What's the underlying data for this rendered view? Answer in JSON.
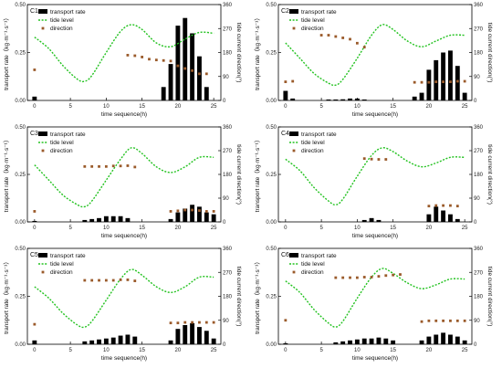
{
  "legend": {
    "transport": "transport rate",
    "tide": "tide level",
    "direction": "direction"
  },
  "axes": {
    "xlabel": "time sequence(h)",
    "ylabel_left": "transport rate（kg·m⁻¹·s⁻¹）",
    "ylabel_right": "tide current direction(°)",
    "x_ticks": [
      0,
      5,
      10,
      15,
      20,
      25
    ],
    "y_ticks_left": [
      "0.00",
      "0.25",
      "0.50"
    ],
    "y_ticks_right": [
      0,
      90,
      180,
      270,
      360
    ]
  },
  "colors": {
    "bar": "#000000",
    "tide": "#22c21f",
    "direction": "#9a5a2a",
    "frame": "#000000"
  },
  "chart_data": [
    {
      "type": "bar",
      "label": "C1",
      "xlim": [
        -1,
        26
      ],
      "ylim": [
        0,
        0.5
      ],
      "y2lim": [
        0,
        360
      ],
      "transport_rate": [
        [
          0,
          0.02
        ],
        [
          18,
          0.07
        ],
        [
          19,
          0.19
        ],
        [
          20,
          0.39
        ],
        [
          21,
          0.43
        ],
        [
          22,
          0.35
        ],
        [
          23,
          0.23
        ],
        [
          24,
          0.07
        ]
      ],
      "tide_level": [
        [
          0,
          0.33
        ],
        [
          2,
          0.27
        ],
        [
          4,
          0.18
        ],
        [
          6,
          0.11
        ],
        [
          7,
          0.1
        ],
        [
          8,
          0.13
        ],
        [
          10,
          0.25
        ],
        [
          12,
          0.36
        ],
        [
          13.5,
          0.395
        ],
        [
          15,
          0.37
        ],
        [
          17,
          0.3
        ],
        [
          19,
          0.28
        ],
        [
          21,
          0.32
        ],
        [
          23,
          0.355
        ],
        [
          25,
          0.35
        ]
      ],
      "direction": [
        [
          0,
          115
        ],
        [
          13,
          170
        ],
        [
          14,
          168
        ],
        [
          15,
          163
        ],
        [
          16,
          155
        ],
        [
          17,
          152
        ],
        [
          18,
          150
        ],
        [
          19,
          148
        ],
        [
          20,
          130
        ],
        [
          21,
          120
        ],
        [
          22,
          112
        ],
        [
          23,
          100
        ],
        [
          24,
          100
        ]
      ]
    },
    {
      "type": "bar",
      "label": "C2",
      "xlim": [
        -1,
        26
      ],
      "ylim": [
        0,
        0.5
      ],
      "y2lim": [
        0,
        360
      ],
      "transport_rate": [
        [
          0,
          0.05
        ],
        [
          1,
          0.01
        ],
        [
          6,
          0.005
        ],
        [
          7,
          0.005
        ],
        [
          8,
          0.006
        ],
        [
          9,
          0.01
        ],
        [
          10,
          0.01
        ],
        [
          11,
          0.005
        ],
        [
          18,
          0.02
        ],
        [
          19,
          0.04
        ],
        [
          20,
          0.16
        ],
        [
          21,
          0.21
        ],
        [
          22,
          0.25
        ],
        [
          23,
          0.26
        ],
        [
          24,
          0.18
        ],
        [
          25,
          0.04
        ]
      ],
      "tide_level": [
        [
          0,
          0.3
        ],
        [
          2,
          0.22
        ],
        [
          4,
          0.14
        ],
        [
          6,
          0.09
        ],
        [
          7,
          0.08
        ],
        [
          8,
          0.11
        ],
        [
          10,
          0.22
        ],
        [
          12,
          0.34
        ],
        [
          13.5,
          0.395
        ],
        [
          15,
          0.37
        ],
        [
          17,
          0.31
        ],
        [
          19,
          0.28
        ],
        [
          21,
          0.31
        ],
        [
          23,
          0.34
        ],
        [
          25,
          0.34
        ]
      ],
      "direction": [
        [
          0,
          70
        ],
        [
          1,
          72
        ],
        [
          5,
          245
        ],
        [
          6,
          245
        ],
        [
          7,
          240
        ],
        [
          8,
          235
        ],
        [
          9,
          230
        ],
        [
          10,
          215
        ],
        [
          11,
          200
        ],
        [
          18,
          68
        ],
        [
          19,
          68
        ],
        [
          20,
          68
        ],
        [
          21,
          70
        ],
        [
          22,
          70
        ],
        [
          23,
          70
        ],
        [
          24,
          72
        ],
        [
          25,
          72
        ]
      ]
    },
    {
      "type": "bar",
      "label": "C3",
      "xlim": [
        -1,
        26
      ],
      "ylim": [
        0,
        0.5
      ],
      "y2lim": [
        0,
        360
      ],
      "transport_rate": [
        [
          0,
          0.005
        ],
        [
          7,
          0.01
        ],
        [
          8,
          0.015
        ],
        [
          9,
          0.02
        ],
        [
          10,
          0.03
        ],
        [
          11,
          0.03
        ],
        [
          12,
          0.03
        ],
        [
          13,
          0.02
        ],
        [
          19,
          0.015
        ],
        [
          20,
          0.05
        ],
        [
          21,
          0.07
        ],
        [
          22,
          0.09
        ],
        [
          23,
          0.08
        ],
        [
          24,
          0.05
        ],
        [
          25,
          0.04
        ]
      ],
      "tide_level": [
        [
          0,
          0.3
        ],
        [
          2,
          0.22
        ],
        [
          4,
          0.14
        ],
        [
          6,
          0.09
        ],
        [
          7,
          0.08
        ],
        [
          8,
          0.11
        ],
        [
          10,
          0.22
        ],
        [
          12,
          0.33
        ],
        [
          13.5,
          0.39
        ],
        [
          15,
          0.36
        ],
        [
          17,
          0.29
        ],
        [
          19,
          0.26
        ],
        [
          21,
          0.29
        ],
        [
          23,
          0.34
        ],
        [
          25,
          0.34
        ]
      ],
      "direction": [
        [
          0,
          40
        ],
        [
          7,
          210
        ],
        [
          8,
          210
        ],
        [
          9,
          210
        ],
        [
          10,
          210
        ],
        [
          11,
          212
        ],
        [
          12,
          212
        ],
        [
          13,
          213
        ],
        [
          14,
          208
        ],
        [
          19,
          40
        ],
        [
          20,
          42
        ],
        [
          21,
          45
        ],
        [
          22,
          45
        ],
        [
          23,
          43
        ],
        [
          24,
          40
        ],
        [
          25,
          40
        ]
      ]
    },
    {
      "type": "bar",
      "label": "C4",
      "xlim": [
        -1,
        26
      ],
      "ylim": [
        0,
        0.5
      ],
      "y2lim": [
        0,
        360
      ],
      "transport_rate": [
        [
          11,
          0.01
        ],
        [
          12,
          0.02
        ],
        [
          13,
          0.01
        ],
        [
          20,
          0.04
        ],
        [
          21,
          0.08
        ],
        [
          22,
          0.06
        ],
        [
          23,
          0.04
        ],
        [
          24,
          0.015
        ]
      ],
      "tide_level": [
        [
          0,
          0.33
        ],
        [
          2,
          0.27
        ],
        [
          4,
          0.18
        ],
        [
          6,
          0.11
        ],
        [
          7,
          0.09
        ],
        [
          8,
          0.12
        ],
        [
          10,
          0.24
        ],
        [
          12,
          0.35
        ],
        [
          13.5,
          0.39
        ],
        [
          15,
          0.37
        ],
        [
          17,
          0.32
        ],
        [
          19,
          0.29
        ],
        [
          21,
          0.31
        ],
        [
          23,
          0.34
        ],
        [
          25,
          0.34
        ]
      ],
      "direction": [
        [
          11,
          240
        ],
        [
          12,
          238
        ],
        [
          13,
          237
        ],
        [
          14,
          237
        ],
        [
          20,
          60
        ],
        [
          21,
          62
        ],
        [
          22,
          62
        ],
        [
          23,
          62
        ],
        [
          24,
          60
        ]
      ]
    },
    {
      "type": "bar",
      "label": "C5",
      "xlim": [
        -1,
        26
      ],
      "ylim": [
        0,
        0.5
      ],
      "y2lim": [
        0,
        360
      ],
      "transport_rate": [
        [
          0,
          0.02
        ],
        [
          7,
          0.015
        ],
        [
          8,
          0.02
        ],
        [
          9,
          0.025
        ],
        [
          10,
          0.03
        ],
        [
          11,
          0.035
        ],
        [
          12,
          0.045
        ],
        [
          13,
          0.05
        ],
        [
          14,
          0.04
        ],
        [
          19,
          0.02
        ],
        [
          20,
          0.08
        ],
        [
          21,
          0.1
        ],
        [
          22,
          0.11
        ],
        [
          23,
          0.09
        ],
        [
          24,
          0.07
        ],
        [
          25,
          0.03
        ]
      ],
      "tide_level": [
        [
          0,
          0.3
        ],
        [
          2,
          0.24
        ],
        [
          4,
          0.16
        ],
        [
          6,
          0.1
        ],
        [
          7,
          0.09
        ],
        [
          8,
          0.12
        ],
        [
          10,
          0.23
        ],
        [
          12,
          0.34
        ],
        [
          13.5,
          0.39
        ],
        [
          15,
          0.36
        ],
        [
          17,
          0.3
        ],
        [
          19,
          0.27
        ],
        [
          21,
          0.3
        ],
        [
          23,
          0.35
        ],
        [
          25,
          0.35
        ]
      ],
      "direction": [
        [
          0,
          75
        ],
        [
          7,
          240
        ],
        [
          8,
          240
        ],
        [
          9,
          240
        ],
        [
          10,
          240
        ],
        [
          11,
          240
        ],
        [
          12,
          242
        ],
        [
          13,
          242
        ],
        [
          14,
          238
        ],
        [
          19,
          80
        ],
        [
          20,
          80
        ],
        [
          21,
          82
        ],
        [
          22,
          82
        ],
        [
          23,
          82
        ],
        [
          24,
          82
        ],
        [
          25,
          82
        ]
      ]
    },
    {
      "type": "bar",
      "label": "C6",
      "xlim": [
        -1,
        26
      ],
      "ylim": [
        0,
        0.5
      ],
      "y2lim": [
        0,
        360
      ],
      "transport_rate": [
        [
          0,
          0.005
        ],
        [
          7,
          0.01
        ],
        [
          8,
          0.015
        ],
        [
          9,
          0.02
        ],
        [
          10,
          0.025
        ],
        [
          11,
          0.03
        ],
        [
          12,
          0.03
        ],
        [
          13,
          0.035
        ],
        [
          14,
          0.03
        ],
        [
          15,
          0.02
        ],
        [
          19,
          0.02
        ],
        [
          20,
          0.04
        ],
        [
          21,
          0.05
        ],
        [
          22,
          0.06
        ],
        [
          23,
          0.05
        ],
        [
          24,
          0.04
        ],
        [
          25,
          0.02
        ]
      ],
      "tide_level": [
        [
          0,
          0.33
        ],
        [
          2,
          0.27
        ],
        [
          4,
          0.18
        ],
        [
          6,
          0.11
        ],
        [
          7,
          0.09
        ],
        [
          8,
          0.12
        ],
        [
          10,
          0.24
        ],
        [
          12,
          0.35
        ],
        [
          13.5,
          0.395
        ],
        [
          15,
          0.37
        ],
        [
          17,
          0.32
        ],
        [
          19,
          0.29
        ],
        [
          21,
          0.31
        ],
        [
          23,
          0.34
        ],
        [
          25,
          0.34
        ]
      ],
      "direction": [
        [
          0,
          90
        ],
        [
          7,
          250
        ],
        [
          8,
          250
        ],
        [
          9,
          250
        ],
        [
          10,
          250
        ],
        [
          11,
          252
        ],
        [
          12,
          252
        ],
        [
          13,
          255
        ],
        [
          14,
          258
        ],
        [
          15,
          260
        ],
        [
          16,
          262
        ],
        [
          19,
          85
        ],
        [
          20,
          88
        ],
        [
          21,
          88
        ],
        [
          22,
          88
        ],
        [
          23,
          88
        ],
        [
          24,
          88
        ],
        [
          25,
          88
        ]
      ]
    }
  ]
}
